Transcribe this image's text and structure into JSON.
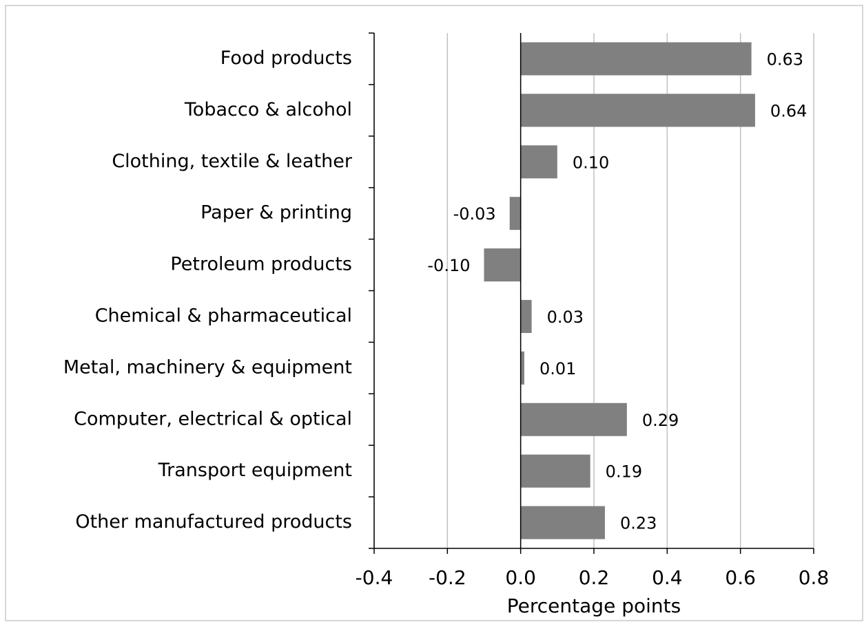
{
  "chart_data": {
    "type": "bar",
    "orientation": "horizontal",
    "x_label": "Percentage points",
    "categories": [
      "Food products",
      "Tobacco & alcohol",
      "Clothing, textile & leather",
      "Paper & printing",
      "Petroleum products",
      "Chemical & pharmaceutical",
      "Metal, machinery & equipment",
      "Computer, electrical & optical",
      "Transport equipment",
      "Other manufactured products"
    ],
    "values": [
      0.63,
      0.64,
      0.1,
      -0.03,
      -0.1,
      0.03,
      0.01,
      0.29,
      0.19,
      0.23
    ],
    "value_labels": [
      "0.63",
      "0.64",
      "0.10",
      "-0.03",
      "-0.10",
      "0.03",
      "0.01",
      "0.29",
      "0.19",
      "0.23"
    ],
    "color": "#808080",
    "xlim": [
      -0.4,
      0.8
    ],
    "xticks": [
      -0.4,
      -0.2,
      {
        "value": 0,
        "label": "0.0"
      },
      0.2,
      0.4,
      0.6,
      0.8
    ],
    "grid": true
  }
}
